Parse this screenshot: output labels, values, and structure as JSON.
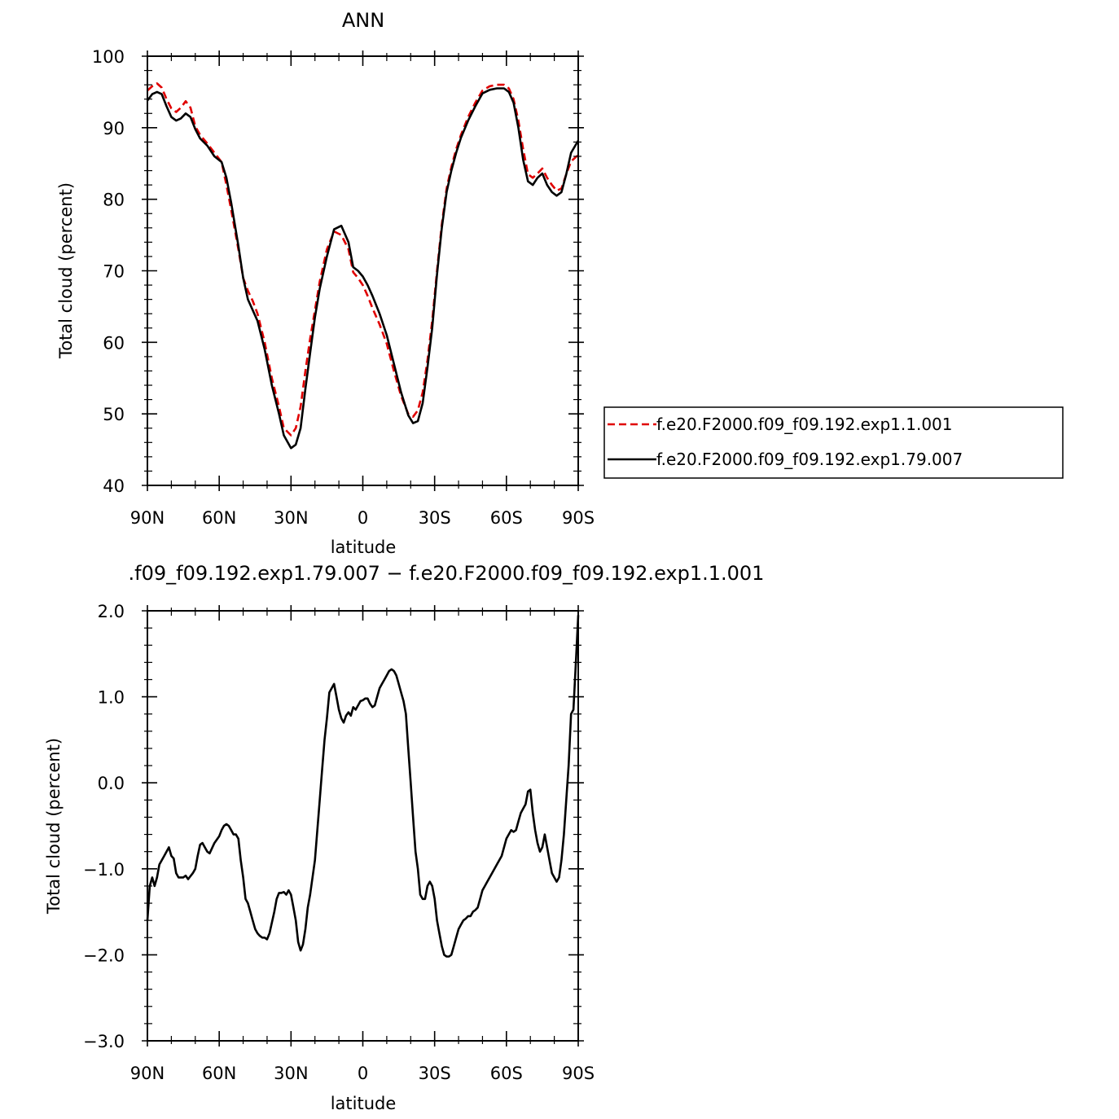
{
  "chart_data": [
    {
      "type": "line",
      "title": "ANN",
      "xlabel": "latitude",
      "ylabel": "Total cloud (percent)",
      "xlim": [
        -90,
        90
      ],
      "ylim": [
        40,
        100
      ],
      "xticks": [
        -90,
        -60,
        -30,
        0,
        30,
        60,
        90
      ],
      "xtick_labels": [
        "90N",
        "60N",
        "30N",
        "0",
        "30S",
        "60S",
        "90S"
      ],
      "yticks": [
        40,
        50,
        60,
        70,
        80,
        90,
        100
      ],
      "ytick_labels": [
        "40",
        "50",
        "60",
        "70",
        "80",
        "90",
        "100"
      ],
      "legend": {
        "placement": "right",
        "entries": [
          "f.e20.F2000.f09_f09.192.exp1.1.001",
          "f.e20.F2000.f09_f09.192.exp1.79.007"
        ]
      },
      "series": [
        {
          "name": "f.e20.F2000.f09_f09.192.exp1.1.001",
          "color": "#e00000",
          "dash": "dashed",
          "x": [
            -90,
            -88,
            -86,
            -84,
            -82,
            -80,
            -78,
            -76,
            -74,
            -72,
            -70,
            -68,
            -65,
            -62,
            -59,
            -57,
            -55,
            -52,
            -50,
            -48,
            -46,
            -44,
            -41,
            -38,
            -35,
            -33,
            -30,
            -28,
            -26,
            -24,
            -22,
            -20,
            -18,
            -15,
            -12,
            -9,
            -6,
            -4,
            -2,
            0,
            2,
            4,
            7,
            10,
            13,
            16,
            19,
            21,
            23,
            25,
            27,
            29,
            31,
            33,
            35,
            37,
            39,
            41,
            44,
            47,
            50,
            53,
            56,
            59,
            61,
            63,
            65,
            67,
            69,
            71,
            73,
            75,
            77,
            79,
            81,
            83,
            85,
            87,
            90
          ],
          "y": [
            95.2,
            95.8,
            96.2,
            95.6,
            94.0,
            92.7,
            92.2,
            92.8,
            93.7,
            92.8,
            90.2,
            89.0,
            87.8,
            86.5,
            85.2,
            82.0,
            78.5,
            73.0,
            69.0,
            67.2,
            65.8,
            64.0,
            60.0,
            55.0,
            51.0,
            48.0,
            47.0,
            48.0,
            51.0,
            56.0,
            60.5,
            64.5,
            68.5,
            73.0,
            75.5,
            75.0,
            73.0,
            69.8,
            69.0,
            68.0,
            66.5,
            64.8,
            62.5,
            59.8,
            56.0,
            52.5,
            50.0,
            49.6,
            50.5,
            53.0,
            57.5,
            63.0,
            70.0,
            76.5,
            81.5,
            84.5,
            87.0,
            89.0,
            91.5,
            93.5,
            95.2,
            95.8,
            96.0,
            96.0,
            95.5,
            94.0,
            91.0,
            87.0,
            83.5,
            83.0,
            83.6,
            84.3,
            83.0,
            82.0,
            81.2,
            81.5,
            83.5,
            85.3,
            86.2
          ]
        },
        {
          "name": "f.e20.F2000.f09_f09.192.exp1.79.007",
          "color": "#000000",
          "dash": "solid",
          "x": [
            -90,
            -88,
            -86,
            -84,
            -82,
            -80,
            -78,
            -76,
            -74,
            -72,
            -70,
            -68,
            -65,
            -62,
            -59,
            -57,
            -55,
            -52,
            -50,
            -48,
            -46,
            -44,
            -41,
            -38,
            -35,
            -33,
            -30,
            -28,
            -26,
            -24,
            -22,
            -20,
            -18,
            -15,
            -12,
            -9,
            -6,
            -4,
            -2,
            0,
            2,
            4,
            7,
            10,
            13,
            16,
            19,
            21,
            23,
            25,
            27,
            29,
            31,
            33,
            35,
            37,
            39,
            41,
            44,
            47,
            50,
            53,
            56,
            59,
            61,
            63,
            65,
            67,
            69,
            71,
            73,
            75,
            77,
            79,
            81,
            83,
            85,
            87,
            90
          ],
          "y": [
            93.8,
            94.7,
            95.0,
            94.7,
            93.0,
            91.5,
            91.0,
            91.3,
            92.0,
            91.5,
            89.8,
            88.5,
            87.5,
            86.0,
            85.2,
            83.0,
            79.5,
            73.5,
            69.0,
            66.0,
            64.5,
            63.0,
            59.0,
            54.0,
            50.0,
            47.0,
            45.2,
            45.7,
            48.0,
            53.5,
            58.5,
            63.5,
            67.5,
            72.0,
            75.8,
            76.3,
            74.0,
            70.5,
            70.0,
            69.2,
            68.0,
            66.5,
            64.0,
            61.0,
            57.0,
            53.0,
            49.8,
            48.7,
            49.0,
            51.5,
            56.5,
            62.0,
            69.5,
            76.0,
            81.0,
            84.0,
            86.5,
            88.6,
            91.0,
            93.0,
            94.8,
            95.3,
            95.5,
            95.5,
            95.0,
            93.5,
            90.0,
            85.5,
            82.5,
            82.0,
            83.0,
            83.6,
            82.0,
            81.0,
            80.5,
            81.0,
            83.5,
            86.5,
            88.2
          ]
        }
      ]
    },
    {
      "type": "line",
      "title": ".f09_f09.192.exp1.79.007 − f.e20.F2000.f09_f09.192.exp1.1.001",
      "xlabel": "latitude",
      "ylabel": "Total cloud (percent)",
      "xlim": [
        -90,
        90
      ],
      "ylim": [
        -3.0,
        2.0
      ],
      "xticks": [
        -90,
        -60,
        -30,
        0,
        30,
        60,
        90
      ],
      "xtick_labels": [
        "90N",
        "60N",
        "30N",
        "0",
        "30S",
        "60S",
        "90S"
      ],
      "yticks": [
        -3.0,
        -2.0,
        -1.0,
        0.0,
        1.0,
        2.0
      ],
      "ytick_labels": [
        "−3.0",
        "−2.0",
        "−1.0",
        "0.0",
        "1.0",
        "2.0"
      ],
      "series": [
        {
          "name": "",
          "color": "#000000",
          "dash": "solid",
          "x": [
            -90,
            -89,
            -88,
            -87,
            -86,
            -85,
            -83,
            -81,
            -80,
            -79,
            -78,
            -77,
            -75,
            -74,
            -73,
            -71,
            -70,
            -69,
            -68,
            -67,
            -66,
            -65,
            -64,
            -62,
            -60,
            -59,
            -58,
            -57,
            -56,
            -55,
            -54,
            -53,
            -52,
            -51,
            -50,
            -49,
            -48,
            -47,
            -46,
            -45,
            -44,
            -43,
            -42,
            -41,
            -40,
            -39,
            -37,
            -36,
            -35,
            -34,
            -33,
            -32,
            -31,
            -30,
            -29,
            -28,
            -27,
            -26,
            -25,
            -24,
            -23,
            -22,
            -20,
            -18,
            -17,
            -16,
            -15,
            -14,
            -13,
            -12,
            -11,
            -10,
            -9,
            -8,
            -7,
            -6,
            -5,
            -4,
            -3,
            -2,
            -1,
            0,
            1,
            2,
            3,
            4,
            5,
            6,
            7,
            8,
            9,
            10,
            11,
            12,
            13,
            14,
            15,
            16,
            17,
            18,
            19,
            20,
            21,
            22,
            23,
            24,
            25,
            26,
            27,
            28,
            29,
            30,
            31,
            32,
            33,
            34,
            35,
            36,
            37,
            38,
            39,
            40,
            41,
            42,
            43,
            44,
            45,
            46,
            47,
            48,
            49,
            50,
            51,
            52,
            54,
            56,
            58,
            60,
            62,
            63,
            64,
            65,
            66,
            67,
            68,
            69,
            70,
            71,
            72,
            73,
            74,
            75,
            76,
            77,
            78,
            79,
            80,
            81,
            82,
            83,
            84,
            85,
            86,
            87,
            88,
            89,
            90
          ],
          "y": [
            -1.6,
            -1.2,
            -1.1,
            -1.2,
            -1.1,
            -0.95,
            -0.85,
            -0.75,
            -0.85,
            -0.88,
            -1.05,
            -1.1,
            -1.1,
            -1.08,
            -1.12,
            -1.05,
            -1.0,
            -0.85,
            -0.72,
            -0.7,
            -0.75,
            -0.8,
            -0.82,
            -0.7,
            -0.62,
            -0.55,
            -0.5,
            -0.48,
            -0.5,
            -0.55,
            -0.6,
            -0.6,
            -0.65,
            -0.9,
            -1.1,
            -1.35,
            -1.4,
            -1.5,
            -1.6,
            -1.7,
            -1.75,
            -1.78,
            -1.8,
            -1.8,
            -1.82,
            -1.75,
            -1.5,
            -1.35,
            -1.28,
            -1.28,
            -1.27,
            -1.3,
            -1.25,
            -1.3,
            -1.45,
            -1.6,
            -1.85,
            -1.95,
            -1.88,
            -1.7,
            -1.45,
            -1.3,
            -0.9,
            -0.2,
            0.15,
            0.5,
            0.75,
            1.05,
            1.1,
            1.15,
            1.0,
            0.85,
            0.75,
            0.7,
            0.78,
            0.82,
            0.78,
            0.88,
            0.85,
            0.9,
            0.95,
            0.96,
            0.98,
            0.98,
            0.92,
            0.88,
            0.9,
            1.0,
            1.1,
            1.15,
            1.2,
            1.25,
            1.3,
            1.32,
            1.3,
            1.25,
            1.15,
            1.05,
            0.95,
            0.8,
            0.4,
            0.0,
            -0.4,
            -0.8,
            -1.0,
            -1.3,
            -1.35,
            -1.35,
            -1.2,
            -1.15,
            -1.2,
            -1.35,
            -1.6,
            -1.75,
            -1.9,
            -2.0,
            -2.02,
            -2.02,
            -2.0,
            -1.9,
            -1.8,
            -1.7,
            -1.65,
            -1.6,
            -1.58,
            -1.55,
            -1.55,
            -1.5,
            -1.48,
            -1.45,
            -1.35,
            -1.25,
            -1.2,
            -1.15,
            -1.05,
            -0.95,
            -0.85,
            -0.65,
            -0.55,
            -0.57,
            -0.55,
            -0.45,
            -0.35,
            -0.3,
            -0.25,
            -0.1,
            -0.08,
            -0.35,
            -0.55,
            -0.7,
            -0.8,
            -0.75,
            -0.6,
            -0.75,
            -0.9,
            -1.05,
            -1.1,
            -1.15,
            -1.1,
            -0.9,
            -0.6,
            -0.2,
            0.2,
            0.8,
            0.85,
            1.4,
            1.95
          ]
        }
      ]
    }
  ]
}
